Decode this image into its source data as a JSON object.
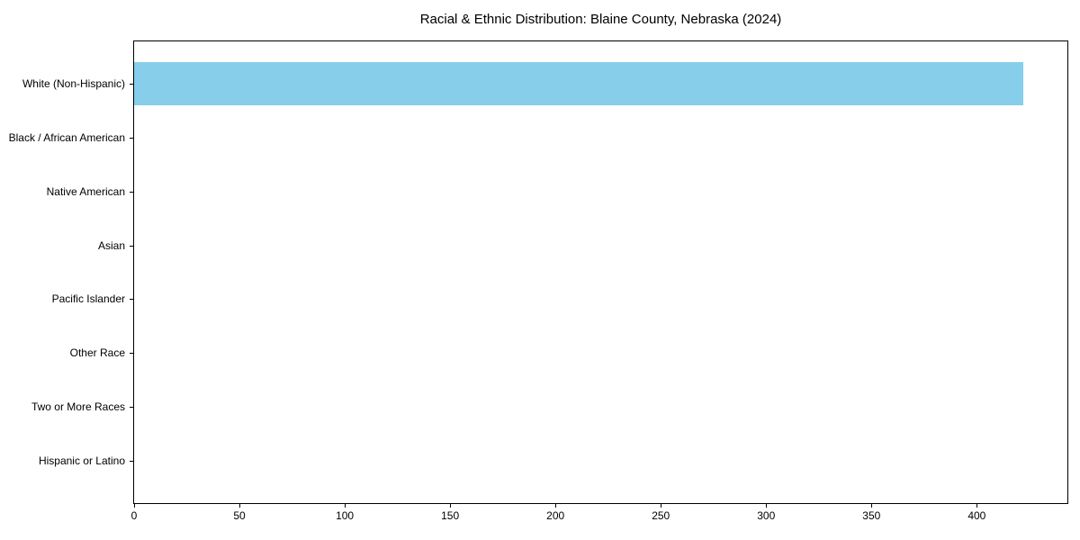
{
  "chart_data": {
    "type": "bar",
    "orientation": "horizontal",
    "title": "Racial & Ethnic Distribution: Blaine County, Nebraska (2024)",
    "categories": [
      "White (Non-Hispanic)",
      "Black / African American",
      "Native American",
      "Asian",
      "Pacific Islander",
      "Other Race",
      "Two or More Races",
      "Hispanic or Latino"
    ],
    "values": [
      422,
      0,
      0,
      0,
      0,
      0,
      0,
      0
    ],
    "xlabel": "",
    "ylabel": "",
    "xlim": [
      0,
      443
    ],
    "xticks": [
      0,
      50,
      100,
      150,
      200,
      250,
      300,
      350,
      400
    ],
    "grid": false,
    "legend": "none",
    "bar_color": "#87CEEB",
    "axis_color": "#000000",
    "background_color": "#FFFFFF"
  }
}
